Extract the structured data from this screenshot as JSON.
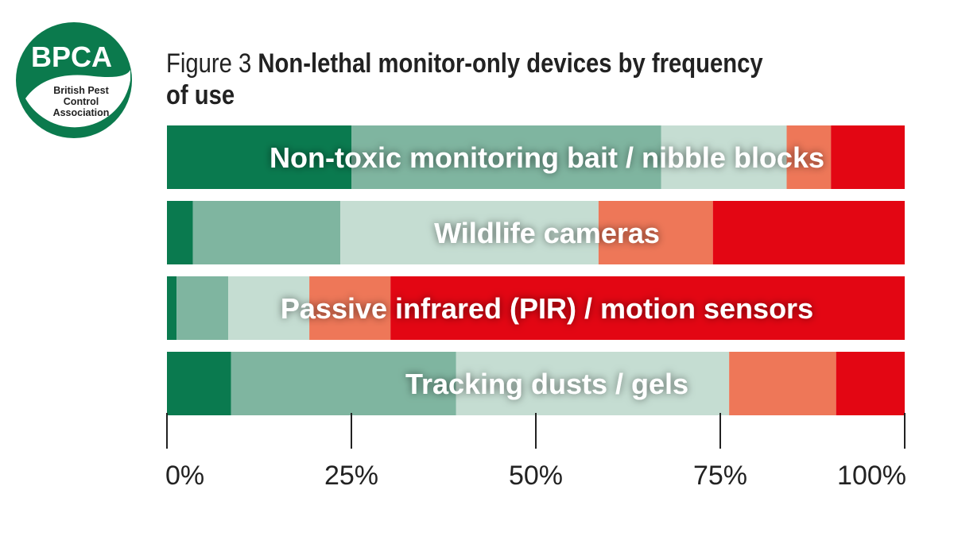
{
  "logo": {
    "acronym": "BPCA",
    "line1": "British Pest",
    "line2": "Control",
    "line3": "Association",
    "color": "#0b7a4d"
  },
  "title": {
    "prefix": "Figure 3",
    "text": "Non-lethal monitor-only devices by frequency of use"
  },
  "chart_data": {
    "type": "bar",
    "orientation": "horizontal",
    "stacked": true,
    "percent_scale": true,
    "categories": [
      "Non-toxic monitoring bait / nibble blocks",
      "Wildlife cameras",
      "Passive infrared (PIR) / motion sensors",
      "Tracking dusts / gels"
    ],
    "series": [
      {
        "color": "#0a7a4f",
        "values": [
          25,
          3.5,
          1.3,
          8.7
        ]
      },
      {
        "color": "#7fb5a0",
        "values": [
          42,
          20,
          7,
          30.5
        ]
      },
      {
        "color": "#c5ddd2",
        "values": [
          17,
          35,
          11,
          37
        ]
      },
      {
        "color": "#ee7758",
        "values": [
          6,
          15.5,
          11,
          14.5
        ]
      },
      {
        "color": "#e30613",
        "values": [
          10,
          26,
          69.7,
          9.3
        ]
      }
    ],
    "xlim": [
      0,
      100
    ],
    "x_ticks": [
      "0%",
      "25%",
      "50%",
      "75%",
      "100%"
    ],
    "grid": false
  }
}
